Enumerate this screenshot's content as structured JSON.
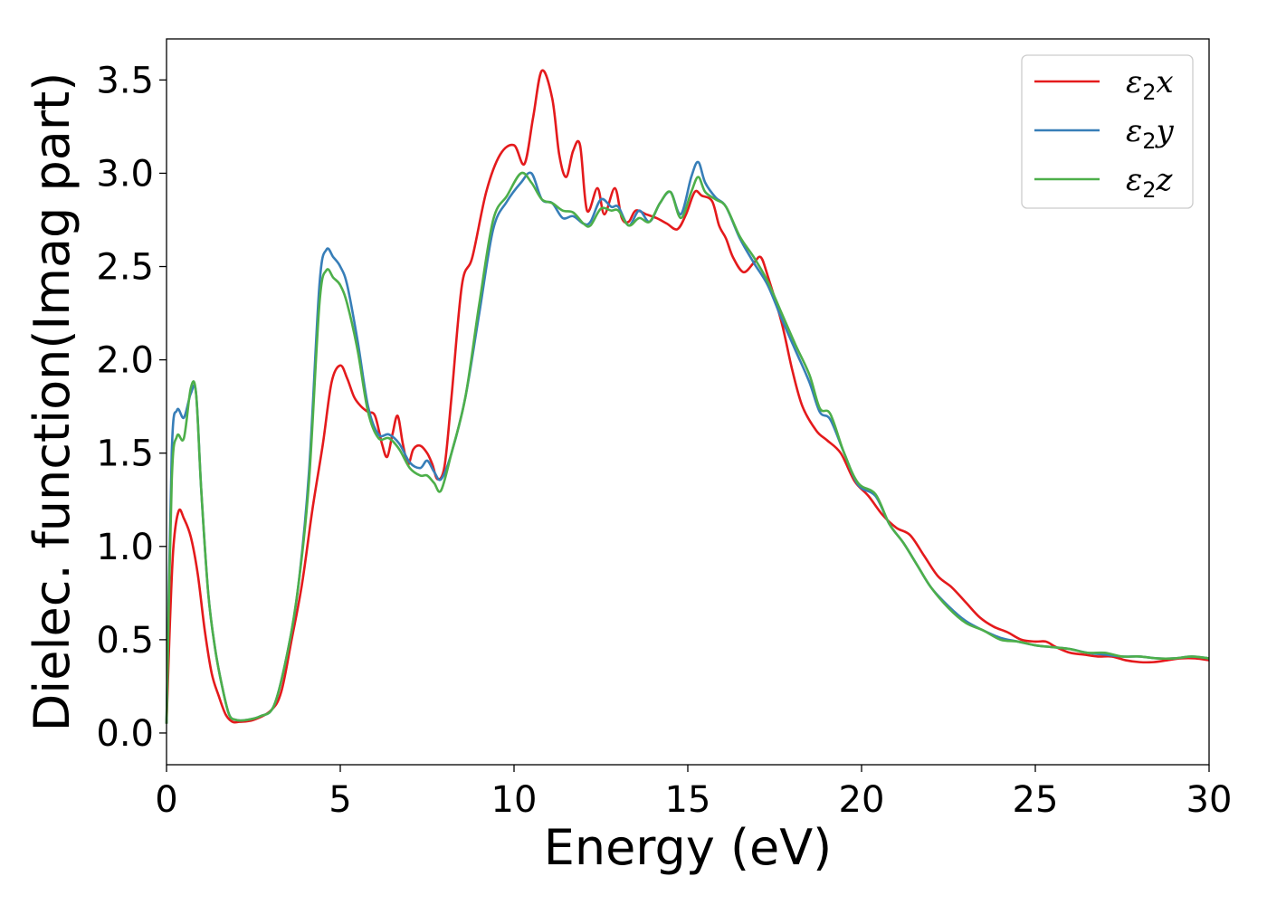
{
  "chart_data": {
    "type": "line",
    "xlabel": "Energy (eV)",
    "ylabel": "Dielec. function(Imag part)",
    "xlim": [
      0,
      30
    ],
    "ylim": [
      -0.17,
      3.72
    ],
    "xticks": [
      0,
      5,
      10,
      15,
      20,
      25,
      30
    ],
    "xtick_labels": [
      "0",
      "5",
      "10",
      "15",
      "20",
      "25",
      "30"
    ],
    "yticks": [
      0.0,
      0.5,
      1.0,
      1.5,
      2.0,
      2.5,
      3.0,
      3.5
    ],
    "ytick_labels": [
      "0.0",
      "0.5",
      "1.0",
      "1.5",
      "2.0",
      "2.5",
      "3.0",
      "3.5"
    ],
    "grid": false,
    "legend_position": "top-right",
    "series": [
      {
        "name": "ε2x",
        "name_base": "ε",
        "name_sub": "2",
        "name_tail": "x",
        "color": "#e41a1c",
        "x": [
          0,
          0.1,
          0.2,
          0.35,
          0.5,
          0.7,
          0.9,
          1.1,
          1.3,
          1.5,
          1.7,
          1.9,
          2.1,
          2.5,
          3.0,
          3.3,
          3.6,
          3.9,
          4.2,
          4.5,
          4.75,
          5.0,
          5.2,
          5.4,
          5.6,
          5.8,
          6.0,
          6.2,
          6.35,
          6.5,
          6.65,
          6.8,
          6.95,
          7.1,
          7.3,
          7.5,
          7.65,
          7.8,
          8.0,
          8.2,
          8.5,
          8.8,
          9.2,
          9.6,
          10.0,
          10.3,
          10.55,
          10.8,
          11.1,
          11.3,
          11.5,
          11.7,
          11.9,
          12.1,
          12.4,
          12.6,
          12.9,
          13.1,
          13.3,
          13.5,
          13.8,
          14.1,
          14.4,
          14.7,
          14.95,
          15.2,
          15.4,
          15.7,
          15.9,
          16.1,
          16.3,
          16.6,
          16.9,
          17.1,
          17.3,
          17.7,
          18.0,
          18.3,
          18.7,
          19.0,
          19.4,
          19.8,
          20.2,
          20.6,
          21.0,
          21.4,
          21.8,
          22.2,
          22.6,
          23.0,
          23.4,
          23.8,
          24.2,
          24.6,
          25.0,
          25.3,
          25.6,
          26.0,
          26.4,
          26.8,
          27.2,
          27.6,
          28.0,
          28.4,
          28.8,
          29.2,
          29.6,
          30.0
        ],
        "y": [
          0.05,
          0.6,
          1.0,
          1.19,
          1.15,
          1.05,
          0.85,
          0.55,
          0.32,
          0.2,
          0.1,
          0.06,
          0.06,
          0.07,
          0.12,
          0.22,
          0.5,
          0.8,
          1.2,
          1.55,
          1.88,
          1.97,
          1.9,
          1.8,
          1.75,
          1.72,
          1.7,
          1.55,
          1.48,
          1.6,
          1.7,
          1.55,
          1.44,
          1.52,
          1.54,
          1.5,
          1.44,
          1.36,
          1.43,
          1.8,
          2.4,
          2.55,
          2.9,
          3.1,
          3.15,
          3.05,
          3.3,
          3.55,
          3.4,
          3.1,
          2.98,
          3.12,
          3.15,
          2.8,
          2.92,
          2.78,
          2.92,
          2.76,
          2.74,
          2.8,
          2.78,
          2.76,
          2.73,
          2.7,
          2.78,
          2.9,
          2.88,
          2.85,
          2.72,
          2.65,
          2.55,
          2.47,
          2.52,
          2.55,
          2.45,
          2.2,
          1.95,
          1.75,
          1.62,
          1.57,
          1.5,
          1.35,
          1.27,
          1.17,
          1.1,
          1.06,
          0.95,
          0.84,
          0.78,
          0.7,
          0.62,
          0.57,
          0.54,
          0.5,
          0.49,
          0.49,
          0.46,
          0.43,
          0.42,
          0.41,
          0.41,
          0.39,
          0.38,
          0.38,
          0.39,
          0.4,
          0.4,
          0.39
        ]
      },
      {
        "name": "ε2y",
        "name_base": "ε",
        "name_sub": "2",
        "name_tail": "y",
        "color": "#377eb8",
        "x": [
          0,
          0.15,
          0.3,
          0.5,
          0.7,
          0.85,
          1.0,
          1.2,
          1.4,
          1.6,
          1.8,
          2.0,
          2.3,
          2.7,
          3.1,
          3.5,
          3.8,
          4.1,
          4.4,
          4.6,
          4.8,
          5.0,
          5.2,
          5.5,
          5.8,
          6.1,
          6.4,
          6.7,
          7.0,
          7.3,
          7.5,
          7.7,
          7.9,
          8.2,
          8.6,
          9.0,
          9.4,
          9.8,
          10.2,
          10.5,
          10.8,
          11.1,
          11.4,
          11.7,
          12.0,
          12.2,
          12.5,
          12.8,
          13.0,
          13.3,
          13.6,
          13.9,
          14.2,
          14.5,
          14.8,
          15.1,
          15.3,
          15.5,
          15.8,
          16.1,
          16.5,
          16.9,
          17.3,
          17.7,
          18.1,
          18.5,
          18.8,
          19.1,
          19.5,
          19.9,
          20.4,
          20.8,
          21.2,
          21.6,
          22.0,
          22.5,
          23.0,
          23.5,
          24.0,
          24.5,
          25.0,
          25.5,
          26.0,
          26.5,
          27.0,
          27.5,
          28.0,
          28.5,
          29.0,
          29.5,
          30.0
        ],
        "y": [
          0.05,
          1.5,
          1.73,
          1.69,
          1.82,
          1.82,
          1.3,
          0.75,
          0.45,
          0.25,
          0.1,
          0.07,
          0.07,
          0.09,
          0.15,
          0.45,
          0.8,
          1.4,
          2.4,
          2.59,
          2.55,
          2.5,
          2.4,
          2.1,
          1.75,
          1.6,
          1.6,
          1.55,
          1.45,
          1.42,
          1.46,
          1.4,
          1.36,
          1.5,
          1.8,
          2.25,
          2.7,
          2.85,
          2.95,
          3.0,
          2.86,
          2.84,
          2.76,
          2.77,
          2.73,
          2.74,
          2.86,
          2.82,
          2.82,
          2.72,
          2.8,
          2.74,
          2.84,
          2.9,
          2.78,
          2.98,
          3.06,
          2.95,
          2.87,
          2.82,
          2.65,
          2.52,
          2.4,
          2.22,
          2.05,
          1.88,
          1.72,
          1.68,
          1.5,
          1.33,
          1.27,
          1.12,
          1.02,
          0.9,
          0.78,
          0.68,
          0.6,
          0.55,
          0.51,
          0.49,
          0.47,
          0.46,
          0.45,
          0.43,
          0.42,
          0.41,
          0.41,
          0.4,
          0.4,
          0.41,
          0.4
        ]
      },
      {
        "name": "ε2z",
        "name_base": "ε",
        "name_sub": "2",
        "name_tail": "z",
        "color": "#4daf4a",
        "x": [
          0,
          0.15,
          0.3,
          0.5,
          0.7,
          0.85,
          1.0,
          1.2,
          1.4,
          1.6,
          1.8,
          2.0,
          2.3,
          2.7,
          3.1,
          3.5,
          3.8,
          4.1,
          4.4,
          4.6,
          4.8,
          5.0,
          5.2,
          5.5,
          5.8,
          6.1,
          6.4,
          6.7,
          7.0,
          7.3,
          7.5,
          7.7,
          7.9,
          8.2,
          8.6,
          9.0,
          9.4,
          9.8,
          10.2,
          10.5,
          10.8,
          11.1,
          11.4,
          11.7,
          12.0,
          12.2,
          12.5,
          12.8,
          13.0,
          13.3,
          13.6,
          13.9,
          14.2,
          14.5,
          14.8,
          15.1,
          15.3,
          15.5,
          15.8,
          16.1,
          16.5,
          16.9,
          17.3,
          17.7,
          18.1,
          18.5,
          18.8,
          19.1,
          19.5,
          19.9,
          20.4,
          20.8,
          21.2,
          21.6,
          22.0,
          22.5,
          23.0,
          23.5,
          24.0,
          24.5,
          25.0,
          25.5,
          26.0,
          26.5,
          27.0,
          27.5,
          28.0,
          28.5,
          29.0,
          29.5,
          30.0
        ],
        "y": [
          0.05,
          1.35,
          1.59,
          1.58,
          1.85,
          1.82,
          1.3,
          0.75,
          0.45,
          0.25,
          0.1,
          0.07,
          0.07,
          0.09,
          0.15,
          0.45,
          0.8,
          1.35,
          2.3,
          2.48,
          2.44,
          2.4,
          2.3,
          2.05,
          1.72,
          1.58,
          1.58,
          1.52,
          1.42,
          1.38,
          1.38,
          1.34,
          1.3,
          1.5,
          1.8,
          2.3,
          2.75,
          2.88,
          3.0,
          2.95,
          2.86,
          2.84,
          2.8,
          2.79,
          2.73,
          2.72,
          2.81,
          2.8,
          2.8,
          2.72,
          2.76,
          2.74,
          2.84,
          2.9,
          2.76,
          2.9,
          2.98,
          2.9,
          2.86,
          2.82,
          2.66,
          2.55,
          2.42,
          2.25,
          2.08,
          1.92,
          1.74,
          1.71,
          1.5,
          1.34,
          1.28,
          1.12,
          1.02,
          0.9,
          0.78,
          0.67,
          0.59,
          0.55,
          0.5,
          0.49,
          0.47,
          0.46,
          0.45,
          0.43,
          0.43,
          0.41,
          0.41,
          0.4,
          0.4,
          0.41,
          0.4
        ]
      }
    ]
  }
}
